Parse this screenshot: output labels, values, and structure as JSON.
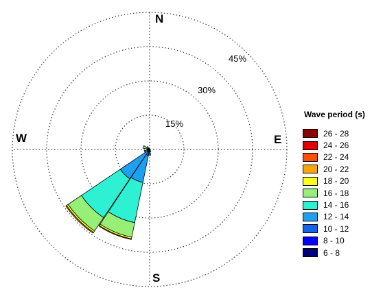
{
  "chart_data": {
    "type": "windrose",
    "legend_title": "Wave period (s)",
    "directions": [
      "N",
      "E",
      "S",
      "W"
    ],
    "ring_labels": [
      "15%",
      "30%",
      "45%"
    ],
    "rings": [
      15,
      30,
      45,
      60
    ],
    "rmax": 60,
    "legend_placement": "right",
    "grid": true,
    "bins": [
      {
        "label": "26 - 28",
        "color": "#8b0000"
      },
      {
        "label": "24 - 26",
        "color": "#e00000"
      },
      {
        "label": "22 - 24",
        "color": "#ff5000"
      },
      {
        "label": "20 - 22",
        "color": "#ffa500"
      },
      {
        "label": "18 - 20",
        "color": "#ffff1e"
      },
      {
        "label": "16 - 18",
        "color": "#96f078"
      },
      {
        "label": "14 - 16",
        "color": "#2ef0d2"
      },
      {
        "label": "12 - 14",
        "color": "#1ea0f0"
      },
      {
        "label": "10 - 12",
        "color": "#1464f0"
      },
      {
        "label": "8 - 10",
        "color": "#0000ff"
      },
      {
        "label": "6 - 8",
        "color": "#00007d"
      }
    ],
    "sectors": [
      {
        "direction": 202.5,
        "values": {
          "6 - 8": 0.2,
          "8 - 10": 0.5,
          "10 - 12": 2.0,
          "12 - 14": 12.0,
          "14 - 16": 18.0,
          "16 - 18": 6.5,
          "18 - 20": 0.7,
          "20 - 22": 0.3
        }
      },
      {
        "direction": 225,
        "values": {
          "6 - 8": 0.2,
          "8 - 10": 0.3,
          "10 - 12": 1.0,
          "12 - 14": 14.0,
          "14 - 16": 20.5,
          "16 - 18": 7.0,
          "18 - 20": 0.8,
          "20 - 22": 0.4
        }
      },
      {
        "direction": 180,
        "values": {
          "6 - 8": 0.5,
          "8 - 10": 0.6,
          "10 - 12": 0.8,
          "12 - 14": 0.6
        }
      },
      {
        "direction": 247.5,
        "values": {
          "6 - 8": 0.2,
          "10 - 12": 0.4,
          "12 - 14": 0.6,
          "14 - 16": 0.8,
          "16 - 18": 0.4
        }
      },
      {
        "direction": 270,
        "values": {
          "12 - 14": 0.3,
          "14 - 16": 0.6,
          "16 - 18": 0.3
        }
      },
      {
        "direction": 292.5,
        "values": {
          "12 - 14": 0.3,
          "14 - 16": 0.9,
          "16 - 18": 1.8
        }
      },
      {
        "direction": 315,
        "values": {
          "14 - 16": 0.7,
          "16 - 18": 0.9
        }
      },
      {
        "direction": 337.5,
        "values": {
          "12 - 14": 0.2,
          "14 - 16": 0.5
        }
      },
      {
        "direction": 157.5,
        "values": {
          "6 - 8": 0.4,
          "8 - 10": 0.6
        }
      }
    ]
  }
}
